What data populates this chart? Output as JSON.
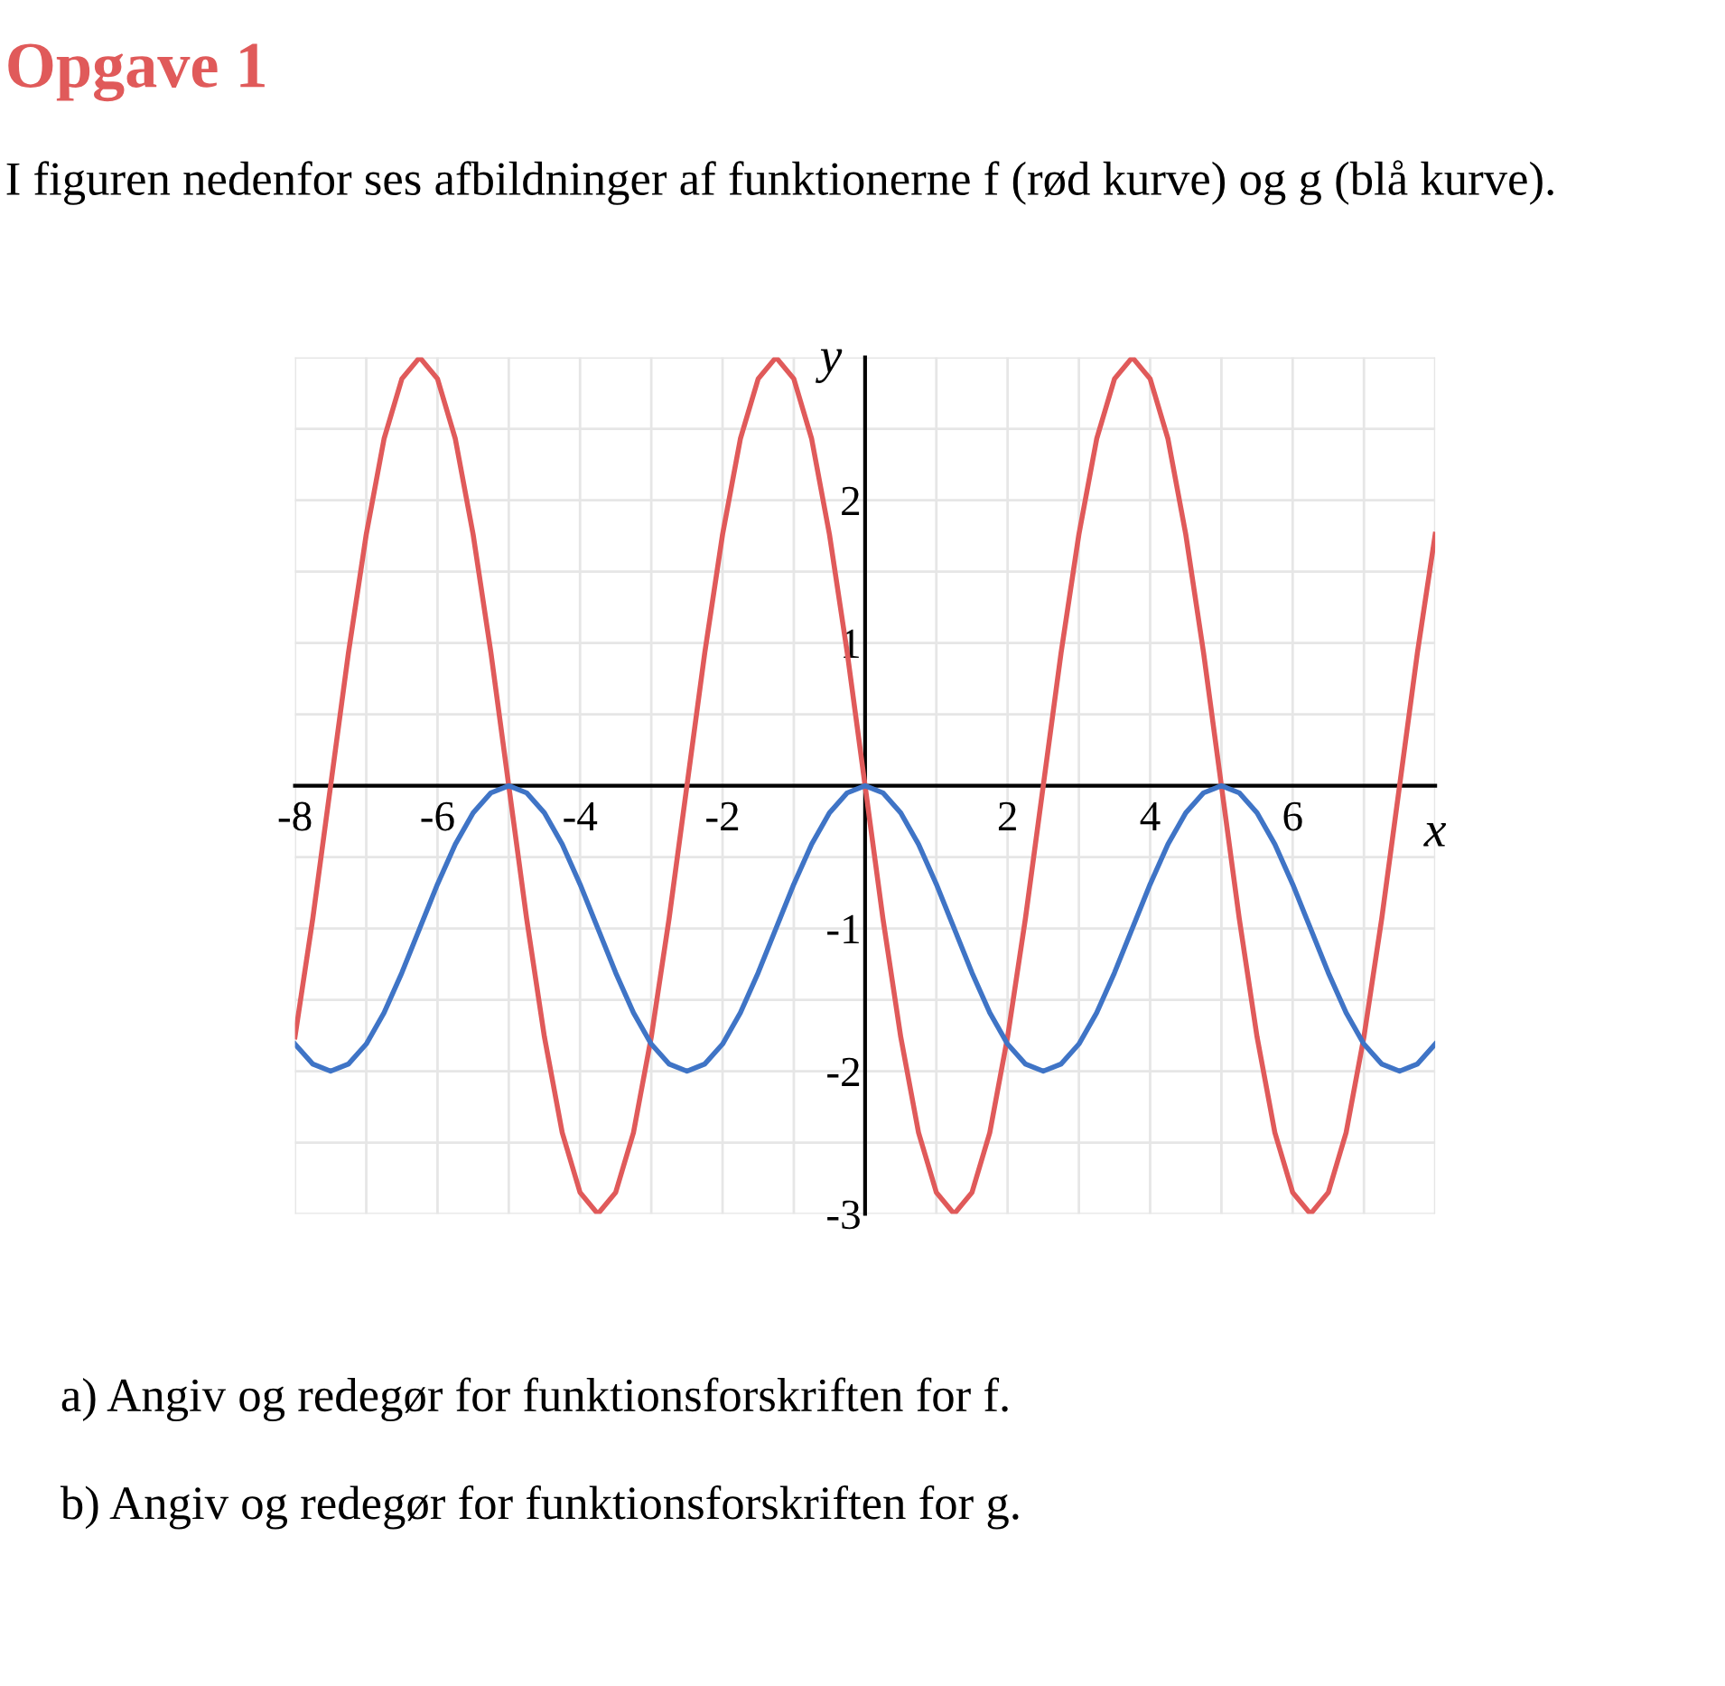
{
  "chart_data": {
    "type": "line",
    "title": "Opgave 1",
    "subtitle": "I figuren nedenfor ses afbildninger af funktionerne f (rød kurve) og g (blå kurve).",
    "xlabel": "x",
    "ylabel": "y",
    "x": [
      -8,
      -7.75,
      -7.5,
      -7.25,
      -7,
      -6.75,
      -6.5,
      -6.25,
      -6,
      -5.75,
      -5.5,
      -5.25,
      -5,
      -4.75,
      -4.5,
      -4.25,
      -4,
      -3.75,
      -3.5,
      -3.25,
      -3,
      -2.75,
      -2.5,
      -2.25,
      -2,
      -1.75,
      -1.5,
      -1.25,
      -1,
      -0.75,
      -0.5,
      -0.25,
      0,
      0.25,
      0.5,
      0.75,
      1,
      1.25,
      1.5,
      1.75,
      2,
      2.25,
      2.5,
      2.75,
      3,
      3.25,
      3.5,
      3.75,
      4,
      4.25,
      4.5,
      4.75,
      5,
      5.25,
      5.5,
      5.75,
      6,
      6.25,
      6.5,
      6.75,
      7,
      7.25,
      7.5,
      7.75,
      8
    ],
    "series": [
      {
        "color": "#e05a5a",
        "values": [
          -1.76,
          -0.93,
          0,
          0.93,
          1.76,
          2.43,
          2.85,
          3,
          2.85,
          2.43,
          1.76,
          0.93,
          0,
          -0.93,
          -1.76,
          -2.43,
          -2.85,
          -3,
          -2.85,
          -2.43,
          -1.76,
          -0.93,
          0,
          0.93,
          1.76,
          2.43,
          2.85,
          3,
          2.85,
          2.43,
          1.76,
          0.93,
          0,
          -0.93,
          -1.76,
          -2.43,
          -2.85,
          -3,
          -2.85,
          -2.43,
          -1.76,
          -0.93,
          0,
          0.93,
          1.76,
          2.43,
          2.85,
          3,
          2.85,
          2.43,
          1.76,
          0.93,
          0,
          -0.93,
          -1.76,
          -2.43,
          -2.85,
          -3,
          -2.85,
          -2.43,
          -1.76,
          -0.93,
          0,
          0.93,
          1.76
        ]
      },
      {
        "color": "#3f74c6",
        "values": [
          -1.81,
          -1.95,
          -2,
          -1.95,
          -1.81,
          -1.59,
          -1.31,
          -1,
          -0.69,
          -0.41,
          -0.19,
          -0.05,
          0,
          -0.05,
          -0.19,
          -0.41,
          -0.69,
          -1,
          -1.31,
          -1.59,
          -1.81,
          -1.95,
          -2,
          -1.95,
          -1.81,
          -1.59,
          -1.31,
          -1,
          -0.69,
          -0.41,
          -0.19,
          -0.05,
          0,
          -0.05,
          -0.19,
          -0.41,
          -0.69,
          -1,
          -1.31,
          -1.59,
          -1.81,
          -1.95,
          -2,
          -1.95,
          -1.81,
          -1.59,
          -1.31,
          -1,
          -0.69,
          -0.41,
          -0.19,
          -0.05,
          0,
          -0.05,
          -0.19,
          -0.41,
          -0.69,
          -1,
          -1.31,
          -1.59,
          -1.81,
          -1.95,
          -2,
          -1.95,
          -1.81
        ]
      }
    ],
    "xlim": [
      -8,
      8
    ],
    "ylim": [
      -3,
      3
    ],
    "xticks": [
      -8,
      {
        "value": -7,
        "label": null
      },
      -6,
      {
        "value": -5,
        "label": null
      },
      -4,
      {
        "value": -3,
        "label": null
      },
      -2,
      {
        "value": -1,
        "label": null
      },
      {
        "value": 0,
        "label": null
      },
      {
        "value": 1,
        "label": null
      },
      2,
      {
        "value": 3,
        "label": null
      },
      4,
      {
        "value": 5,
        "label": null
      },
      6,
      {
        "value": 7,
        "label": null
      },
      {
        "value": 8,
        "label": null
      }
    ],
    "yticks": [
      -3,
      {
        "value": -2.5,
        "label": null
      },
      -2,
      {
        "value": -1.5,
        "label": null
      },
      -1,
      {
        "value": -0.5,
        "label": null
      },
      {
        "value": 0,
        "label": null
      },
      {
        "value": 0.5,
        "label": null
      },
      1,
      {
        "value": 1.5,
        "label": null
      },
      2,
      {
        "value": 2.5,
        "label": null
      },
      {
        "value": 3,
        "label": null
      }
    ],
    "grid": true,
    "marker": "none",
    "line_style": "solid",
    "annotations": [
      "a) Angiv og redegør for funktionsforskriften for f.",
      "b) Angiv og redegør for funktionsforskriften for g."
    ]
  }
}
